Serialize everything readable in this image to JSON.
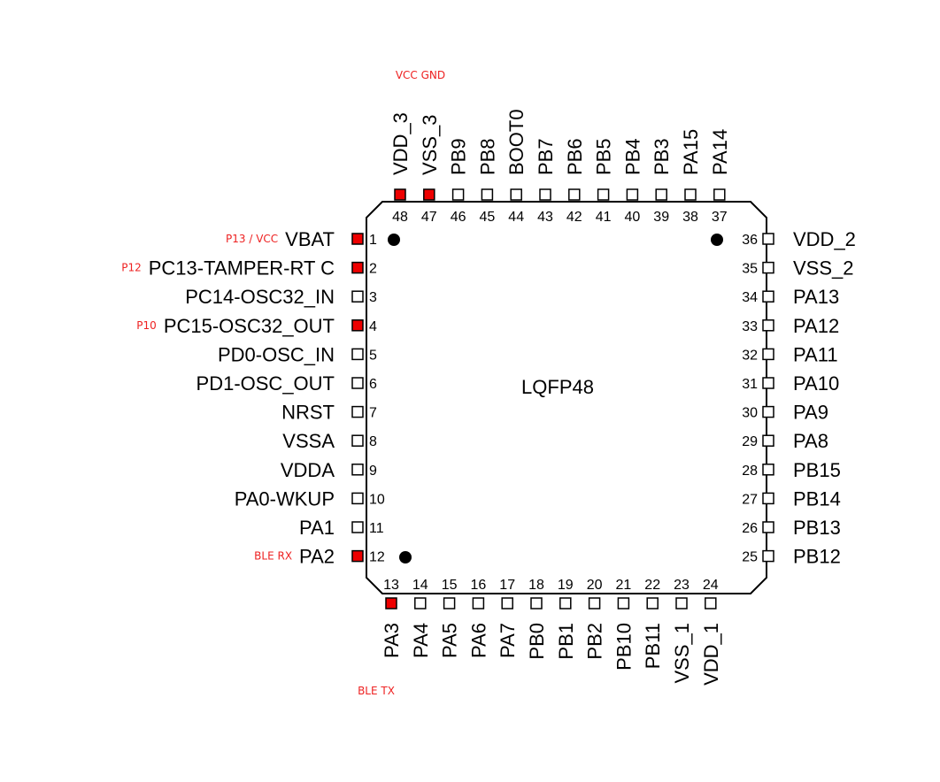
{
  "colors": {
    "highlight": "#ee0000",
    "annotation": "#ee2222",
    "outline": "#000000"
  },
  "package": {
    "label": "LQFP48"
  },
  "left_pins": [
    {
      "num": "1",
      "name": "VBAT",
      "highlight": true,
      "note": "P13 / VCC"
    },
    {
      "num": "2",
      "name": "PC13-TAMPER-RT C",
      "highlight": true,
      "note": "P12"
    },
    {
      "num": "3",
      "name": "PC14-OSC32_IN",
      "highlight": false,
      "note": ""
    },
    {
      "num": "4",
      "name": "PC15-OSC32_OUT",
      "highlight": true,
      "note": "P10"
    },
    {
      "num": "5",
      "name": "PD0-OSC_IN",
      "highlight": false,
      "note": ""
    },
    {
      "num": "6",
      "name": "PD1-OSC_OUT",
      "highlight": false,
      "note": ""
    },
    {
      "num": "7",
      "name": "NRST",
      "highlight": false,
      "note": ""
    },
    {
      "num": "8",
      "name": "VSSA",
      "highlight": false,
      "note": ""
    },
    {
      "num": "9",
      "name": "VDDA",
      "highlight": false,
      "note": ""
    },
    {
      "num": "10",
      "name": "PA0-WKUP",
      "highlight": false,
      "note": ""
    },
    {
      "num": "11",
      "name": "PA1",
      "highlight": false,
      "note": ""
    },
    {
      "num": "12",
      "name": "PA2",
      "highlight": true,
      "note": "BLE RX"
    }
  ],
  "bottom_pins": [
    {
      "num": "13",
      "name": "PA3",
      "highlight": true
    },
    {
      "num": "14",
      "name": "PA4",
      "highlight": false
    },
    {
      "num": "15",
      "name": "PA5",
      "highlight": false
    },
    {
      "num": "16",
      "name": "PA6",
      "highlight": false
    },
    {
      "num": "17",
      "name": "PA7",
      "highlight": false
    },
    {
      "num": "18",
      "name": "PB0",
      "highlight": false
    },
    {
      "num": "19",
      "name": "PB1",
      "highlight": false
    },
    {
      "num": "20",
      "name": "PB2",
      "highlight": false
    },
    {
      "num": "21",
      "name": "PB10",
      "highlight": false
    },
    {
      "num": "22",
      "name": "PB11",
      "highlight": false
    },
    {
      "num": "23",
      "name": "VSS_1",
      "highlight": false
    },
    {
      "num": "24",
      "name": "VDD_1",
      "highlight": false
    }
  ],
  "bottom_note": "BLE TX",
  "right_pins": [
    {
      "num": "36",
      "name": "VDD_2",
      "highlight": false
    },
    {
      "num": "35",
      "name": "VSS_2",
      "highlight": false
    },
    {
      "num": "34",
      "name": "PA13",
      "highlight": false
    },
    {
      "num": "33",
      "name": "PA12",
      "highlight": false
    },
    {
      "num": "32",
      "name": "PA11",
      "highlight": false
    },
    {
      "num": "31",
      "name": "PA10",
      "highlight": false
    },
    {
      "num": "30",
      "name": "PA9",
      "highlight": false
    },
    {
      "num": "29",
      "name": "PA8",
      "highlight": false
    },
    {
      "num": "28",
      "name": "PB15",
      "highlight": false
    },
    {
      "num": "27",
      "name": "PB14",
      "highlight": false
    },
    {
      "num": "26",
      "name": "PB13",
      "highlight": false
    },
    {
      "num": "25",
      "name": "PB12",
      "highlight": false
    }
  ],
  "top_pins": [
    {
      "num": "48",
      "name": "VDD_3",
      "highlight": true
    },
    {
      "num": "47",
      "name": "VSS_3",
      "highlight": true
    },
    {
      "num": "46",
      "name": "PB9",
      "highlight": false
    },
    {
      "num": "45",
      "name": "PB8",
      "highlight": false
    },
    {
      "num": "44",
      "name": "BOOT0",
      "highlight": false
    },
    {
      "num": "43",
      "name": "PB7",
      "highlight": false
    },
    {
      "num": "42",
      "name": "PB6",
      "highlight": false
    },
    {
      "num": "41",
      "name": "PB5",
      "highlight": false
    },
    {
      "num": "40",
      "name": "PB4",
      "highlight": false
    },
    {
      "num": "39",
      "name": "PB3",
      "highlight": false
    },
    {
      "num": "38",
      "name": "PA15",
      "highlight": false
    },
    {
      "num": "37",
      "name": "PA14",
      "highlight": false
    }
  ],
  "top_note": "VCC GND"
}
